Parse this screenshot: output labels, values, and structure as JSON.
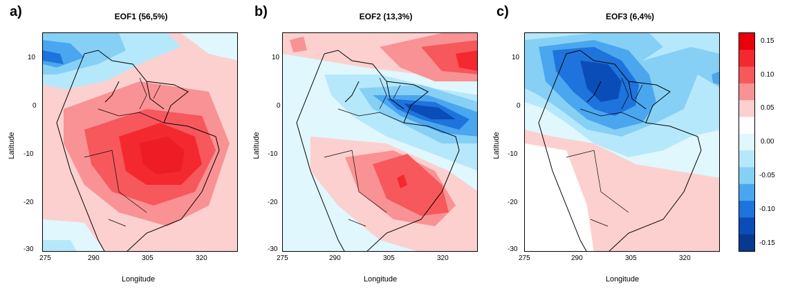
{
  "panels": [
    {
      "letter": "a)",
      "title": "EOF1 (56,5%)"
    },
    {
      "letter": "b)",
      "title": "EOF2 (13,3%)"
    },
    {
      "letter": "c)",
      "title": "EOF3 (6,4%)"
    }
  ],
  "axes": {
    "xlabel": "Longitude",
    "ylabel": "Latitude",
    "xticks": [
      "275",
      "290",
      "305",
      "320"
    ],
    "yticks": [
      "10",
      "0",
      "-10",
      "-20",
      "-30"
    ]
  },
  "legend": {
    "labels": [
      "0.15",
      "0.10",
      "0.05",
      "0.00",
      "-0.05",
      "-0.10",
      "-0.15"
    ],
    "colors": [
      "#e8000b",
      "#f3292f",
      "#f6585c",
      "#f99294",
      "#fcd0cf",
      "#ffffff",
      "#e0f7fd",
      "#b6e8fb",
      "#86d0f6",
      "#4aa6ee",
      "#1e73dc",
      "#0b4db8",
      "#073a8d"
    ]
  },
  "palette": {
    "red_strong": "#ee1c24",
    "red_mid": "#f6585c",
    "red_light": "#f99294",
    "red_pale": "#fcd0cf",
    "white": "#ffffff",
    "blue_pale": "#e0f7fd",
    "blue_light": "#b6e8fb",
    "blue_mid": "#86d0f6",
    "blue": "#4aa6ee",
    "blue_dark": "#1e73dc",
    "blue_deep": "#0b4db8"
  }
}
